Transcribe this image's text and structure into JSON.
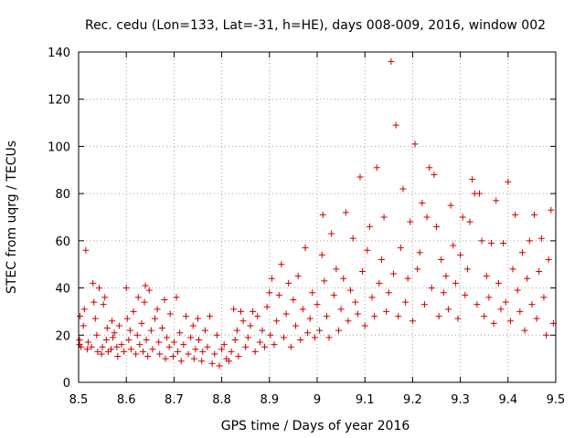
{
  "chart_data": {
    "type": "scatter",
    "title": "Rec. cedu (Lon=133, Lat=-31, h=HE), days 008-009, 2016, window 002",
    "xlabel": "GPS time / Days of year 2016",
    "ylabel": "STEC from uqrg / TECUs",
    "xlim": [
      8.5,
      9.5
    ],
    "ylim": [
      0,
      140
    ],
    "xticks": [
      8.5,
      8.6,
      8.7,
      8.8,
      8.9,
      9.0,
      9.1,
      9.2,
      9.3,
      9.4,
      9.5
    ],
    "xtick_labels": [
      "8.5",
      "8.6",
      "8.7",
      "8.8",
      "8.9",
      "9",
      "9.1",
      "9.2",
      "9.3",
      "9.4",
      "9.5"
    ],
    "yticks": [
      0,
      20,
      40,
      60,
      80,
      100,
      120,
      140
    ],
    "ytick_labels": [
      "0",
      "20",
      "40",
      "60",
      "80",
      "100",
      "120",
      "140"
    ],
    "grid": true,
    "marker": "plus",
    "marker_color": "#cc0000",
    "series": [
      {
        "name": "STEC",
        "points": [
          [
            8.502,
            18
          ],
          [
            8.502,
            16
          ],
          [
            8.503,
            28
          ],
          [
            8.505,
            15
          ],
          [
            8.51,
            24
          ],
          [
            8.512,
            31
          ],
          [
            8.515,
            56
          ],
          [
            8.518,
            14
          ],
          [
            8.52,
            17
          ],
          [
            8.527,
            15
          ],
          [
            8.53,
            42
          ],
          [
            8.532,
            34
          ],
          [
            8.535,
            27
          ],
          [
            8.538,
            20
          ],
          [
            8.54,
            13
          ],
          [
            8.543,
            40
          ],
          [
            8.548,
            12
          ],
          [
            8.55,
            15
          ],
          [
            8.552,
            33
          ],
          [
            8.555,
            36
          ],
          [
            8.558,
            18
          ],
          [
            8.56,
            23
          ],
          [
            8.562,
            13
          ],
          [
            8.568,
            14
          ],
          [
            8.57,
            26
          ],
          [
            8.572,
            19
          ],
          [
            8.575,
            21
          ],
          [
            8.58,
            15
          ],
          [
            8.582,
            11
          ],
          [
            8.585,
            24
          ],
          [
            8.59,
            16
          ],
          [
            8.595,
            13
          ],
          [
            8.6,
            40
          ],
          [
            8.602,
            27
          ],
          [
            8.605,
            18
          ],
          [
            8.608,
            22
          ],
          [
            8.61,
            14
          ],
          [
            8.615,
            30
          ],
          [
            8.62,
            12
          ],
          [
            8.623,
            20
          ],
          [
            8.625,
            36
          ],
          [
            8.628,
            16
          ],
          [
            8.632,
            25
          ],
          [
            8.635,
            13
          ],
          [
            8.638,
            34
          ],
          [
            8.64,
            41
          ],
          [
            8.642,
            18
          ],
          [
            8.645,
            11
          ],
          [
            8.648,
            39
          ],
          [
            8.652,
            22
          ],
          [
            8.655,
            14
          ],
          [
            8.66,
            27
          ],
          [
            8.665,
            31
          ],
          [
            8.668,
            17
          ],
          [
            8.67,
            12
          ],
          [
            8.675,
            23
          ],
          [
            8.68,
            35
          ],
          [
            8.682,
            10
          ],
          [
            8.685,
            19
          ],
          [
            8.69,
            15
          ],
          [
            8.692,
            29
          ],
          [
            8.698,
            11
          ],
          [
            8.7,
            17
          ],
          [
            8.705,
            36
          ],
          [
            8.708,
            13
          ],
          [
            8.712,
            21
          ],
          [
            8.715,
            9
          ],
          [
            8.72,
            16
          ],
          [
            8.725,
            28
          ],
          [
            8.73,
            12
          ],
          [
            8.735,
            19
          ],
          [
            8.74,
            24
          ],
          [
            8.742,
            10
          ],
          [
            8.745,
            14
          ],
          [
            8.75,
            27
          ],
          [
            8.752,
            18
          ],
          [
            8.758,
            9
          ],
          [
            8.76,
            13
          ],
          [
            8.765,
            22
          ],
          [
            8.77,
            15
          ],
          [
            8.775,
            28
          ],
          [
            8.78,
            8
          ],
          [
            8.785,
            12
          ],
          [
            8.79,
            20
          ],
          [
            8.795,
            7
          ],
          [
            8.8,
            14
          ],
          [
            8.805,
            16
          ],
          [
            8.81,
            10
          ],
          [
            8.815,
            9
          ],
          [
            8.82,
            13
          ],
          [
            8.825,
            31
          ],
          [
            8.828,
            18
          ],
          [
            8.832,
            22
          ],
          [
            8.835,
            11
          ],
          [
            8.84,
            30
          ],
          [
            8.845,
            26
          ],
          [
            8.85,
            15
          ],
          [
            8.855,
            19
          ],
          [
            8.86,
            24
          ],
          [
            8.865,
            30
          ],
          [
            8.87,
            13
          ],
          [
            8.875,
            28
          ],
          [
            8.88,
            17
          ],
          [
            8.885,
            22
          ],
          [
            8.89,
            15
          ],
          [
            8.895,
            32
          ],
          [
            8.9,
            38
          ],
          [
            8.902,
            20
          ],
          [
            8.905,
            44
          ],
          [
            8.91,
            16
          ],
          [
            8.915,
            26
          ],
          [
            8.92,
            37
          ],
          [
            8.925,
            50
          ],
          [
            8.93,
            19
          ],
          [
            8.935,
            29
          ],
          [
            8.94,
            42
          ],
          [
            8.945,
            15
          ],
          [
            8.95,
            35
          ],
          [
            8.955,
            24
          ],
          [
            8.96,
            45
          ],
          [
            8.965,
            18
          ],
          [
            8.97,
            31
          ],
          [
            8.975,
            57
          ],
          [
            8.98,
            21
          ],
          [
            8.985,
            27
          ],
          [
            8.99,
            38
          ],
          [
            8.995,
            19
          ],
          [
            9.0,
            33
          ],
          [
            9.005,
            22
          ],
          [
            9.01,
            54
          ],
          [
            9.012,
            71
          ],
          [
            9.015,
            43
          ],
          [
            9.02,
            28
          ],
          [
            9.025,
            19
          ],
          [
            9.03,
            63
          ],
          [
            9.035,
            37
          ],
          [
            9.04,
            48
          ],
          [
            9.045,
            22
          ],
          [
            9.05,
            31
          ],
          [
            9.055,
            44
          ],
          [
            9.06,
            72
          ],
          [
            9.065,
            26
          ],
          [
            9.07,
            39
          ],
          [
            9.075,
            61
          ],
          [
            9.08,
            34
          ],
          [
            9.085,
            29
          ],
          [
            9.09,
            87
          ],
          [
            9.095,
            47
          ],
          [
            9.1,
            24
          ],
          [
            9.105,
            56
          ],
          [
            9.11,
            66
          ],
          [
            9.115,
            36
          ],
          [
            9.12,
            28
          ],
          [
            9.125,
            91
          ],
          [
            9.13,
            42
          ],
          [
            9.135,
            52
          ],
          [
            9.14,
            70
          ],
          [
            9.145,
            30
          ],
          [
            9.15,
            38
          ],
          [
            9.155,
            136
          ],
          [
            9.16,
            46
          ],
          [
            9.165,
            109
          ],
          [
            9.17,
            28
          ],
          [
            9.175,
            57
          ],
          [
            9.18,
            82
          ],
          [
            9.185,
            34
          ],
          [
            9.19,
            44
          ],
          [
            9.195,
            68
          ],
          [
            9.2,
            26
          ],
          [
            9.205,
            101
          ],
          [
            9.21,
            48
          ],
          [
            9.215,
            55
          ],
          [
            9.22,
            76
          ],
          [
            9.225,
            33
          ],
          [
            9.23,
            70
          ],
          [
            9.235,
            91
          ],
          [
            9.24,
            40
          ],
          [
            9.245,
            88
          ],
          [
            9.25,
            66
          ],
          [
            9.255,
            28
          ],
          [
            9.26,
            52
          ],
          [
            9.265,
            38
          ],
          [
            9.27,
            45
          ],
          [
            9.275,
            31
          ],
          [
            9.28,
            75
          ],
          [
            9.285,
            58
          ],
          [
            9.29,
            42
          ],
          [
            9.295,
            27
          ],
          [
            9.3,
            54
          ],
          [
            9.305,
            70
          ],
          [
            9.31,
            37
          ],
          [
            9.315,
            48
          ],
          [
            9.32,
            68
          ],
          [
            9.325,
            86
          ],
          [
            9.33,
            80
          ],
          [
            9.335,
            33
          ],
          [
            9.34,
            80
          ],
          [
            9.345,
            60
          ],
          [
            9.35,
            28
          ],
          [
            9.355,
            45
          ],
          [
            9.36,
            36
          ],
          [
            9.365,
            59
          ],
          [
            9.37,
            25
          ],
          [
            9.375,
            77
          ],
          [
            9.38,
            42
          ],
          [
            9.385,
            31
          ],
          [
            9.39,
            59
          ],
          [
            9.395,
            34
          ],
          [
            9.4,
            85
          ],
          [
            9.405,
            26
          ],
          [
            9.41,
            48
          ],
          [
            9.415,
            71
          ],
          [
            9.42,
            39
          ],
          [
            9.425,
            30
          ],
          [
            9.43,
            55
          ],
          [
            9.435,
            22
          ],
          [
            9.44,
            44
          ],
          [
            9.445,
            60
          ],
          [
            9.45,
            33
          ],
          [
            9.455,
            71
          ],
          [
            9.46,
            27
          ],
          [
            9.465,
            47
          ],
          [
            9.47,
            61
          ],
          [
            9.475,
            36
          ],
          [
            9.48,
            20
          ],
          [
            9.485,
            52
          ],
          [
            9.49,
            73
          ],
          [
            9.495,
            25
          ]
        ]
      }
    ]
  }
}
